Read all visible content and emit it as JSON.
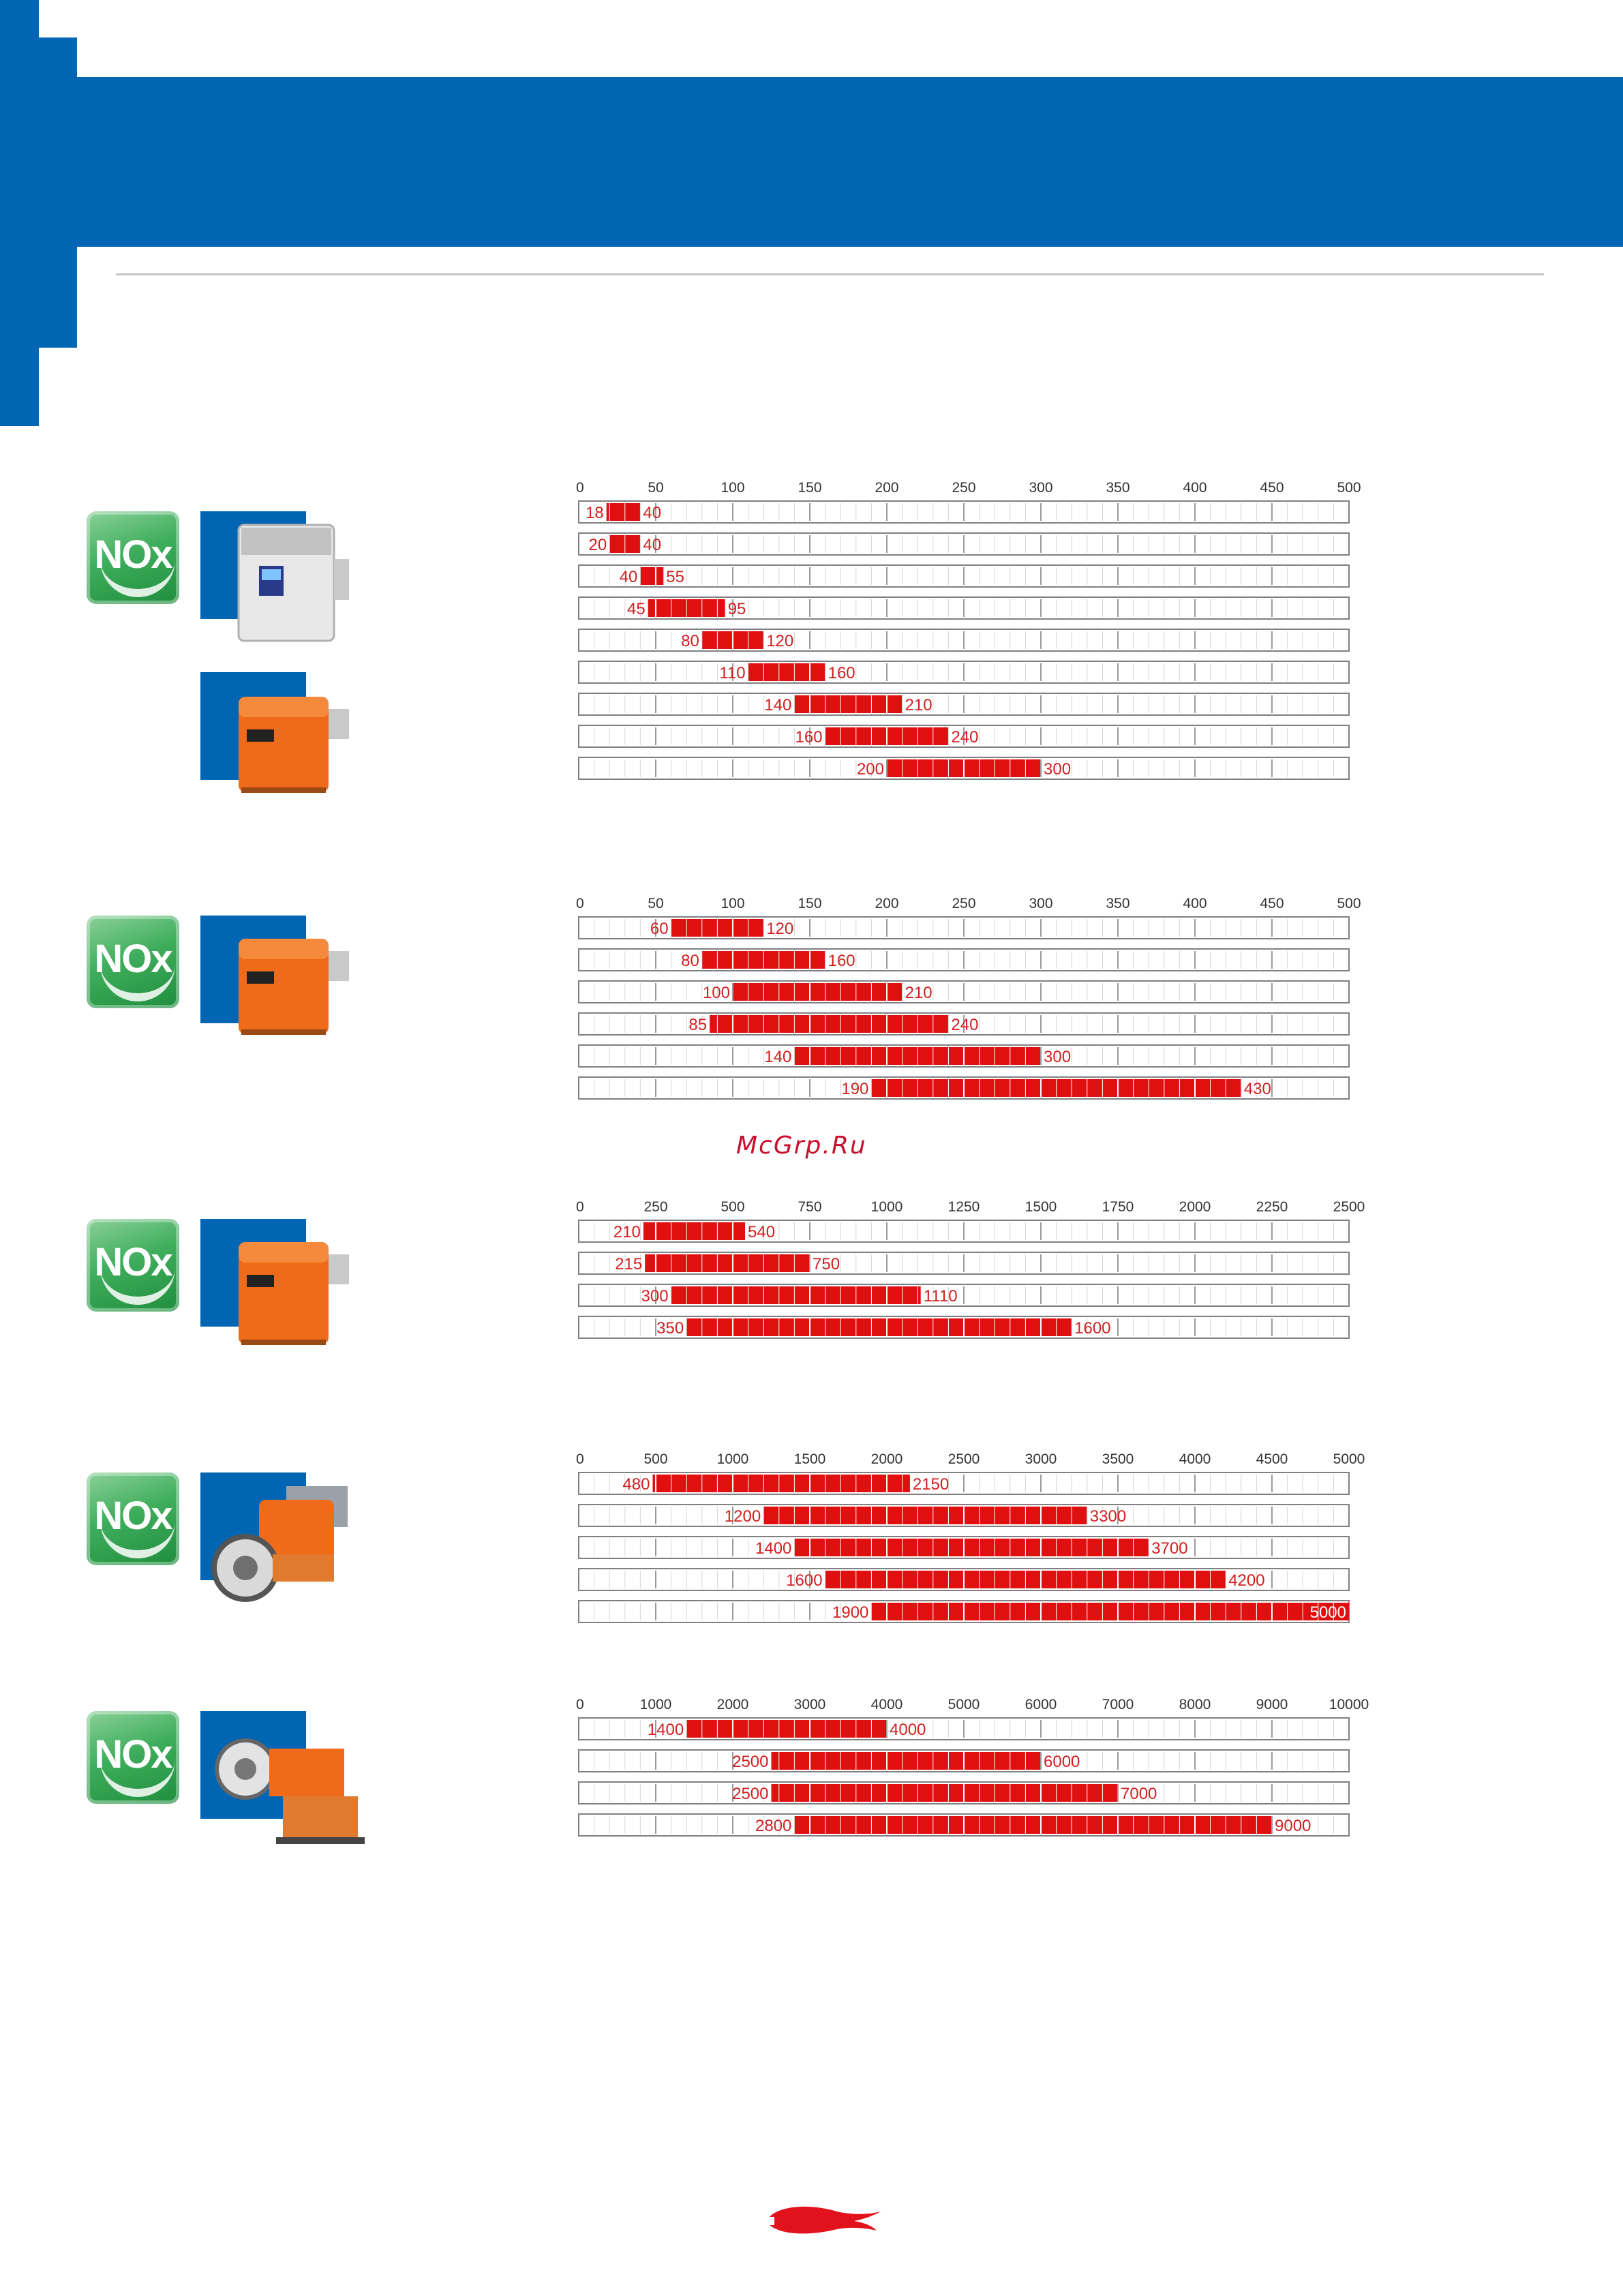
{
  "colors": {
    "brand_blue": "#0066b3",
    "bar_red": "#e11010",
    "label_red": "#d12020",
    "frame": "#808080",
    "badge_green": "#3fae5c",
    "burner_orange": "#ef6b1a",
    "burner_grey": "#c9c9c9"
  },
  "badges": {
    "nox_label": "NOx"
  },
  "watermark": "McGrp.Ru",
  "icons": [
    "nox-badge-icon",
    "burner-product-icon",
    "brand-flame-logo-icon"
  ],
  "chart_data": [
    {
      "type": "bar",
      "subtype": "range",
      "x_ticks": [
        "0",
        "50",
        "100",
        "150",
        "200",
        "250",
        "300",
        "350",
        "400",
        "450",
        "500"
      ],
      "xlim": [
        0,
        500
      ],
      "grid": true,
      "ranges": [
        [
          18,
          40
        ],
        [
          20,
          40
        ],
        [
          40,
          55
        ],
        [
          45,
          95
        ],
        [
          80,
          120
        ],
        [
          110,
          160
        ],
        [
          140,
          210
        ],
        [
          160,
          240
        ],
        [
          200,
          300
        ]
      ]
    },
    {
      "type": "bar",
      "subtype": "range",
      "x_ticks": [
        "0",
        "50",
        "100",
        "150",
        "200",
        "250",
        "300",
        "350",
        "400",
        "450",
        "500"
      ],
      "xlim": [
        0,
        500
      ],
      "grid": true,
      "ranges": [
        [
          60,
          120
        ],
        [
          80,
          160
        ],
        [
          100,
          210
        ],
        [
          85,
          240
        ],
        [
          140,
          300
        ],
        [
          190,
          430
        ]
      ]
    },
    {
      "type": "bar",
      "subtype": "range",
      "x_ticks": [
        "0",
        "250",
        "500",
        "750",
        "1000",
        "1250",
        "1500",
        "1750",
        "2000",
        "2250",
        "2500"
      ],
      "xlim": [
        0,
        2500
      ],
      "grid": true,
      "ranges": [
        [
          210,
          540
        ],
        [
          215,
          750
        ],
        [
          300,
          1110
        ],
        [
          350,
          1600
        ]
      ]
    },
    {
      "type": "bar",
      "subtype": "range",
      "x_ticks": [
        "0",
        "500",
        "1000",
        "1500",
        "2000",
        "2500",
        "3000",
        "3500",
        "4000",
        "4500",
        "5000"
      ],
      "xlim": [
        0,
        5000
      ],
      "grid": true,
      "ranges": [
        [
          480,
          2150
        ],
        [
          1200,
          3300
        ],
        [
          1400,
          3700
        ],
        [
          1600,
          4200
        ],
        [
          1900,
          5000
        ]
      ]
    },
    {
      "type": "bar",
      "subtype": "range",
      "x_ticks": [
        "0",
        "1000",
        "2000",
        "3000",
        "4000",
        "5000",
        "6000",
        "7000",
        "8000",
        "9000",
        "10000"
      ],
      "xlim": [
        0,
        10000
      ],
      "grid": true,
      "ranges": [
        [
          1400,
          4000
        ],
        [
          2500,
          6000
        ],
        [
          2500,
          7000
        ],
        [
          2800,
          9000
        ]
      ]
    }
  ]
}
